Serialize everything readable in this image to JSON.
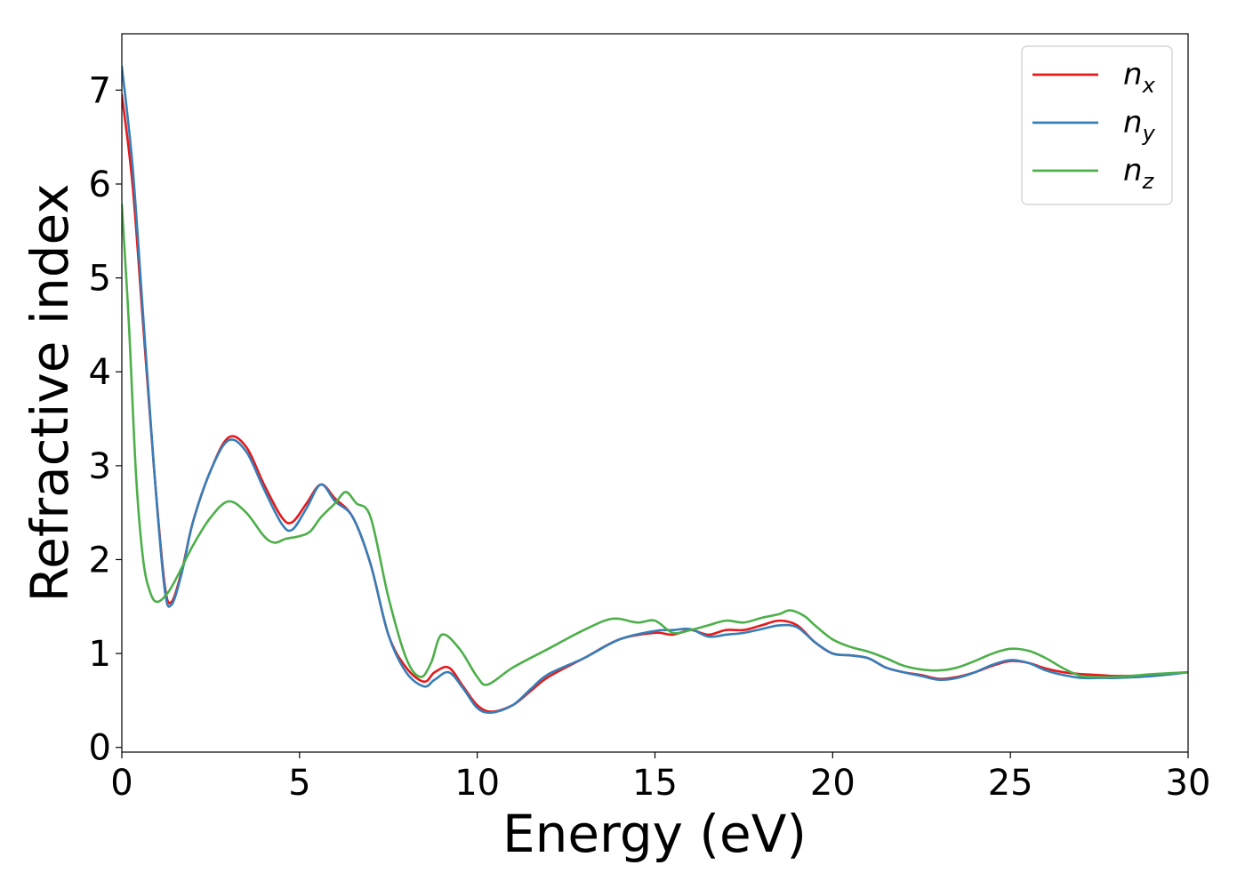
{
  "chart_data": {
    "type": "line",
    "title": "",
    "xlabel": "Energy (eV)",
    "ylabel": "Refractive index",
    "xlim": [
      0,
      30
    ],
    "ylim": [
      -0.05,
      7.6
    ],
    "xticks": [
      0,
      5,
      10,
      15,
      20,
      25,
      30
    ],
    "yticks": [
      0,
      1,
      2,
      3,
      4,
      5,
      6,
      7
    ],
    "grid": false,
    "legend_position": "top-right",
    "series": [
      {
        "name": "n_x",
        "legend_base": "n",
        "legend_sub": "x",
        "color": "#e41a1c",
        "x": [
          0,
          0.3,
          0.6,
          0.9,
          1.2,
          1.4,
          1.7,
          2.0,
          2.5,
          3.0,
          3.5,
          4.0,
          4.5,
          4.8,
          5.2,
          5.6,
          6.0,
          6.5,
          7.0,
          7.5,
          8.0,
          8.5,
          8.8,
          9.2,
          9.6,
          10.0,
          10.4,
          11.0,
          11.5,
          12.0,
          13.0,
          14.0,
          15.0,
          15.5,
          16.0,
          16.5,
          17.0,
          17.5,
          18.0,
          18.5,
          19.0,
          19.5,
          20.0,
          20.5,
          21.0,
          21.5,
          22.0,
          22.5,
          23.0,
          23.5,
          24.0,
          24.5,
          25.0,
          25.5,
          26.0,
          26.5,
          27.0,
          27.5,
          28.0,
          29.0,
          30.0
        ],
        "values": [
          6.95,
          6.0,
          4.5,
          3.0,
          1.75,
          1.55,
          1.9,
          2.4,
          2.95,
          3.3,
          3.2,
          2.8,
          2.45,
          2.4,
          2.6,
          2.8,
          2.65,
          2.45,
          1.95,
          1.2,
          0.85,
          0.7,
          0.8,
          0.85,
          0.65,
          0.45,
          0.38,
          0.45,
          0.6,
          0.75,
          0.95,
          1.15,
          1.22,
          1.2,
          1.25,
          1.2,
          1.25,
          1.25,
          1.3,
          1.35,
          1.3,
          1.12,
          1.0,
          0.98,
          0.95,
          0.85,
          0.8,
          0.77,
          0.73,
          0.75,
          0.8,
          0.87,
          0.92,
          0.9,
          0.84,
          0.8,
          0.78,
          0.77,
          0.76,
          0.77,
          0.8
        ]
      },
      {
        "name": "n_y",
        "legend_base": "n",
        "legend_sub": "y",
        "color": "#377eb8",
        "x": [
          0,
          0.3,
          0.6,
          0.9,
          1.2,
          1.4,
          1.7,
          2.0,
          2.5,
          3.0,
          3.5,
          4.0,
          4.5,
          4.8,
          5.2,
          5.6,
          6.0,
          6.5,
          7.0,
          7.5,
          8.0,
          8.5,
          8.8,
          9.2,
          9.6,
          10.0,
          10.4,
          11.0,
          11.5,
          12.0,
          13.0,
          14.0,
          15.0,
          15.5,
          16.0,
          16.5,
          17.0,
          17.5,
          18.0,
          18.5,
          19.0,
          19.5,
          20.0,
          20.5,
          21.0,
          21.5,
          22.0,
          22.5,
          23.0,
          23.5,
          24.0,
          24.5,
          25.0,
          25.5,
          26.0,
          26.5,
          27.0,
          27.5,
          28.0,
          29.0,
          30.0
        ],
        "values": [
          7.25,
          6.2,
          4.6,
          3.0,
          1.7,
          1.52,
          1.88,
          2.4,
          2.95,
          3.27,
          3.15,
          2.75,
          2.38,
          2.32,
          2.55,
          2.8,
          2.62,
          2.45,
          1.95,
          1.2,
          0.8,
          0.65,
          0.72,
          0.8,
          0.63,
          0.42,
          0.37,
          0.45,
          0.62,
          0.78,
          0.95,
          1.15,
          1.24,
          1.25,
          1.26,
          1.18,
          1.2,
          1.22,
          1.26,
          1.3,
          1.28,
          1.12,
          1.0,
          0.98,
          0.95,
          0.85,
          0.8,
          0.76,
          0.72,
          0.74,
          0.8,
          0.88,
          0.93,
          0.9,
          0.82,
          0.77,
          0.74,
          0.74,
          0.74,
          0.76,
          0.8
        ]
      },
      {
        "name": "n_z",
        "legend_base": "n",
        "legend_sub": "z",
        "color": "#4daf4a",
        "x": [
          0,
          0.2,
          0.4,
          0.6,
          0.8,
          1.0,
          1.3,
          1.6,
          2.0,
          2.5,
          3.0,
          3.5,
          4.0,
          4.3,
          4.6,
          5.0,
          5.3,
          5.6,
          6.0,
          6.3,
          6.6,
          7.0,
          7.5,
          8.0,
          8.4,
          8.7,
          9.0,
          9.5,
          10.0,
          10.3,
          11.0,
          12.0,
          13.0,
          13.8,
          14.5,
          15.0,
          15.5,
          16.0,
          16.5,
          17.0,
          17.5,
          18.0,
          18.5,
          18.8,
          19.2,
          19.5,
          20.0,
          20.5,
          21.0,
          21.5,
          22.0,
          22.5,
          23.0,
          23.5,
          24.0,
          24.5,
          25.0,
          25.5,
          26.0,
          26.5,
          27.0,
          27.5,
          28.0,
          29.0,
          30.0
        ],
        "values": [
          5.78,
          4.5,
          2.9,
          2.0,
          1.65,
          1.55,
          1.65,
          1.85,
          2.15,
          2.45,
          2.62,
          2.5,
          2.25,
          2.18,
          2.22,
          2.25,
          2.3,
          2.45,
          2.6,
          2.72,
          2.6,
          2.45,
          1.6,
          0.95,
          0.75,
          0.9,
          1.2,
          1.05,
          0.75,
          0.67,
          0.85,
          1.05,
          1.25,
          1.37,
          1.33,
          1.35,
          1.22,
          1.25,
          1.3,
          1.35,
          1.33,
          1.38,
          1.42,
          1.46,
          1.4,
          1.3,
          1.15,
          1.07,
          1.02,
          0.95,
          0.87,
          0.83,
          0.82,
          0.85,
          0.92,
          1.0,
          1.05,
          1.03,
          0.95,
          0.84,
          0.76,
          0.75,
          0.75,
          0.78,
          0.8
        ]
      }
    ]
  }
}
